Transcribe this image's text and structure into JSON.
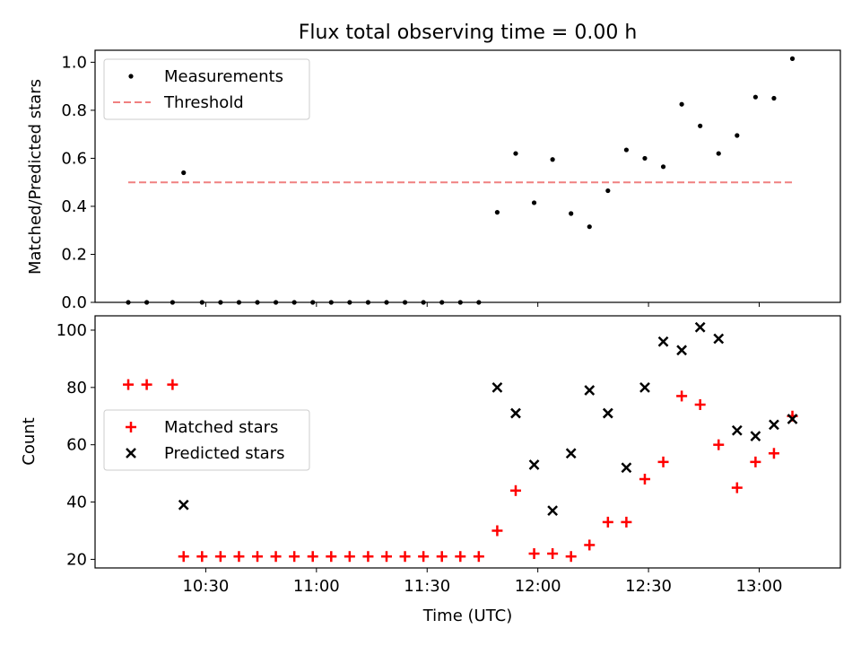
{
  "title": "Flux total observing time = 0.00 h",
  "chart_data": [
    {
      "type": "scatter",
      "ylabel": "Matched/Predicted stars",
      "xlabel": "",
      "ylim": [
        0,
        1.05
      ],
      "xlim": [
        "10:00",
        "13:22"
      ],
      "yticks": [
        "0.0",
        "0.2",
        "0.4",
        "0.6",
        "0.8",
        "1.0"
      ],
      "legend": {
        "placement": "top-left",
        "items": [
          {
            "label": "Measurements",
            "kind": "dot",
            "color": "#000000"
          },
          {
            "label": "Threshold",
            "kind": "dash",
            "color": "#f08080"
          }
        ]
      },
      "threshold": {
        "y": 0.5,
        "x_start": "10:09",
        "x_end": "13:09"
      },
      "series": [
        {
          "name": "Measurements",
          "color": "#000000",
          "points": [
            [
              "10:09",
              0.0
            ],
            [
              "10:14",
              0.0
            ],
            [
              "10:21",
              0.0
            ],
            [
              "10:24",
              0.54
            ],
            [
              "10:29",
              0.0
            ],
            [
              "10:34",
              0.0
            ],
            [
              "10:39",
              0.0
            ],
            [
              "10:44",
              0.0
            ],
            [
              "10:49",
              0.0
            ],
            [
              "10:54",
              0.0
            ],
            [
              "10:59",
              0.0
            ],
            [
              "11:04",
              0.0
            ],
            [
              "11:09",
              0.0
            ],
            [
              "11:14",
              0.0
            ],
            [
              "11:19",
              0.0
            ],
            [
              "11:24",
              0.0
            ],
            [
              "11:29",
              0.0
            ],
            [
              "11:34",
              0.0
            ],
            [
              "11:39",
              0.0
            ],
            [
              "11:44",
              0.0
            ],
            [
              "11:49",
              0.375
            ],
            [
              "11:54",
              0.62
            ],
            [
              "11:59",
              0.415
            ],
            [
              "12:04",
              0.595
            ],
            [
              "12:09",
              0.37
            ],
            [
              "12:14",
              0.315
            ],
            [
              "12:19",
              0.465
            ],
            [
              "12:24",
              0.635
            ],
            [
              "12:29",
              0.6
            ],
            [
              "12:34",
              0.565
            ],
            [
              "12:39",
              0.825
            ],
            [
              "12:44",
              0.735
            ],
            [
              "12:49",
              0.62
            ],
            [
              "12:54",
              0.695
            ],
            [
              "12:59",
              0.855
            ],
            [
              "13:04",
              0.85
            ],
            [
              "13:09",
              1.015
            ]
          ]
        }
      ]
    },
    {
      "type": "scatter",
      "ylabel": "Count",
      "xlabel": "Time (UTC)",
      "ylim": [
        17,
        105
      ],
      "xlim": [
        "10:00",
        "13:22"
      ],
      "yticks": [
        "20",
        "40",
        "60",
        "80",
        "100"
      ],
      "xticks": [
        "10:30",
        "11:00",
        "11:30",
        "12:00",
        "12:30",
        "13:00"
      ],
      "legend": {
        "placement": "center-left",
        "items": [
          {
            "label": "Matched stars",
            "kind": "plus",
            "color": "#ff0000"
          },
          {
            "label": "Predicted stars",
            "kind": "x",
            "color": "#000000"
          }
        ]
      },
      "series": [
        {
          "name": "Matched stars",
          "color": "#ff0000",
          "marker": "plus",
          "points": [
            [
              "10:09",
              81
            ],
            [
              "10:14",
              81
            ],
            [
              "10:21",
              81
            ],
            [
              "10:24",
              21
            ],
            [
              "10:29",
              21
            ],
            [
              "10:34",
              21
            ],
            [
              "10:39",
              21
            ],
            [
              "10:44",
              21
            ],
            [
              "10:49",
              21
            ],
            [
              "10:54",
              21
            ],
            [
              "10:59",
              21
            ],
            [
              "11:04",
              21
            ],
            [
              "11:09",
              21
            ],
            [
              "11:14",
              21
            ],
            [
              "11:19",
              21
            ],
            [
              "11:24",
              21
            ],
            [
              "11:29",
              21
            ],
            [
              "11:34",
              21
            ],
            [
              "11:39",
              21
            ],
            [
              "11:44",
              21
            ],
            [
              "11:49",
              30
            ],
            [
              "11:54",
              44
            ],
            [
              "11:59",
              22
            ],
            [
              "12:04",
              22
            ],
            [
              "12:09",
              21
            ],
            [
              "12:14",
              25
            ],
            [
              "12:19",
              33
            ],
            [
              "12:24",
              33
            ],
            [
              "12:29",
              48
            ],
            [
              "12:34",
              54
            ],
            [
              "12:39",
              77
            ],
            [
              "12:44",
              74
            ],
            [
              "12:49",
              60
            ],
            [
              "12:54",
              45
            ],
            [
              "12:59",
              54
            ],
            [
              "13:04",
              57
            ],
            [
              "13:09",
              70
            ]
          ]
        },
        {
          "name": "Predicted stars",
          "color": "#000000",
          "marker": "x",
          "points": [
            [
              "10:24",
              39
            ],
            [
              "11:49",
              80
            ],
            [
              "11:54",
              71
            ],
            [
              "11:59",
              53
            ],
            [
              "12:04",
              37
            ],
            [
              "12:09",
              57
            ],
            [
              "12:14",
              79
            ],
            [
              "12:19",
              71
            ],
            [
              "12:24",
              52
            ],
            [
              "12:29",
              80
            ],
            [
              "12:34",
              96
            ],
            [
              "12:39",
              93
            ],
            [
              "12:44",
              101
            ],
            [
              "12:49",
              97
            ],
            [
              "12:54",
              65
            ],
            [
              "12:59",
              63
            ],
            [
              "13:04",
              67
            ],
            [
              "13:09",
              69
            ]
          ]
        }
      ]
    }
  ]
}
